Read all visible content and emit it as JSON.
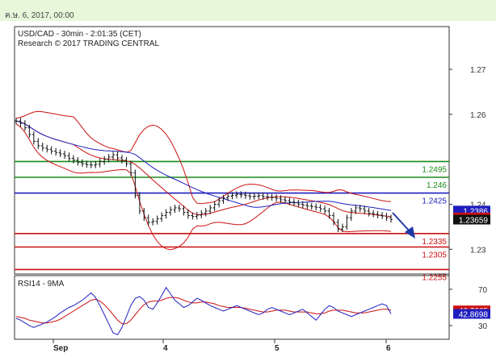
{
  "header": {
    "timestamp": "ค.ษ. 6, 2017, 00:00"
  },
  "chart_data": {
    "type": "line",
    "instrument_label": "USD/CAD - 30min - 2:01:35 (CET)",
    "research_label": "Research © 2017 TRADING CENTRAL",
    "price_ticks": [
      "1.27",
      "1.26",
      "1.24",
      "1.23"
    ],
    "price_tick_values": [
      1.27,
      1.26,
      1.24,
      1.23
    ],
    "price_axis_range": [
      1.2245,
      1.2795
    ],
    "x_tick_labels": [
      "Sep",
      "4",
      "5",
      "6"
    ],
    "levels": [
      {
        "label": "1.2495",
        "value": 1.2495,
        "color": "#1a8c1a"
      },
      {
        "label": "1.246",
        "value": 1.246,
        "color": "#1a8c1a"
      },
      {
        "label": "1.2425",
        "value": 1.2425,
        "color": "#1f1fbf"
      },
      {
        "label": "1.2335",
        "value": 1.2335,
        "color": "#cc1111"
      },
      {
        "label": "1.2305",
        "value": 1.2305,
        "color": "#cc1111"
      },
      {
        "label": "1.2255",
        "value": 1.2255,
        "color": "#cc1111"
      }
    ],
    "price_tags": [
      {
        "label": "1.2386",
        "value": 1.2386,
        "bg": "#1f1fbf",
        "fg": "#ffffff"
      },
      {
        "label": "1.23707",
        "value": 1.23707,
        "bg": "#cc1111",
        "fg": "#ffffff"
      },
      {
        "label": "1.23659",
        "value": 1.23659,
        "bg": "#111111",
        "fg": "#ffffff"
      }
    ],
    "price_series": [
      1.2585,
      1.258,
      1.257,
      1.2555,
      1.254,
      1.253,
      1.2525,
      1.2522,
      1.2518,
      1.2515,
      1.2512,
      1.2508,
      1.2502,
      1.2498,
      1.2493,
      1.249,
      1.2488,
      1.2487,
      1.2489,
      1.2495,
      1.25,
      1.2505,
      1.251,
      1.2503,
      1.2498,
      1.249,
      1.247,
      1.242,
      1.2385,
      1.237,
      1.236,
      1.2362,
      1.2368,
      1.2375,
      1.2382,
      1.2388,
      1.2392,
      1.239,
      1.2382,
      1.2375,
      1.2373,
      1.2376,
      1.238,
      1.2385,
      1.2392,
      1.24,
      1.2408,
      1.2414,
      1.2418,
      1.242,
      1.2422,
      1.2421,
      1.2419,
      1.2417,
      1.2418,
      1.2419,
      1.2417,
      1.2416,
      1.2415,
      1.2413,
      1.241,
      1.2408,
      1.2405,
      1.2403,
      1.24,
      1.2398,
      1.2396,
      1.2395,
      1.2393,
      1.239,
      1.2385,
      1.2375,
      1.236,
      1.2345,
      1.235,
      1.237,
      1.2385,
      1.2392,
      1.239,
      1.2385,
      1.238,
      1.2378,
      1.2376,
      1.2374,
      1.237,
      1.2366
    ],
    "rsi_label": "RSI14 - 9MA",
    "rsi_ticks": [
      "70",
      "30"
    ],
    "rsi_tick_values": [
      70,
      30
    ],
    "rsi_axis_range": [
      15,
      85
    ],
    "rsi_tags": [
      {
        "label": "46.7665",
        "value": 46.7665,
        "bg": "#cc1111",
        "fg": "#ffffff"
      },
      {
        "label": "42.8698",
        "value": 42.8698,
        "bg": "#1f1fbf",
        "fg": "#ffffff"
      }
    ],
    "rsi_series": [
      38,
      36,
      33,
      30,
      28,
      30,
      32,
      34,
      37,
      40,
      44,
      47,
      50,
      52,
      55,
      58,
      62,
      66,
      61,
      52,
      42,
      32,
      22,
      20,
      28,
      40,
      52,
      60,
      62,
      58,
      50,
      48,
      55,
      63,
      72,
      65,
      58,
      54,
      50,
      52,
      56,
      60,
      58,
      55,
      52,
      50,
      48,
      46,
      48,
      50,
      52,
      50,
      48,
      46,
      44,
      42,
      44,
      48,
      50,
      48,
      46,
      44,
      42,
      44,
      46,
      48,
      44,
      40,
      36,
      42,
      48,
      52,
      50,
      46,
      44,
      42,
      40,
      42,
      44,
      46,
      48,
      50,
      52,
      54,
      52,
      42.87
    ],
    "rsi_ma_series": [
      40,
      39,
      38,
      36,
      35,
      34,
      33,
      33,
      34,
      35,
      37,
      40,
      43,
      46,
      49,
      52,
      55,
      58,
      59,
      57,
      53,
      48,
      42,
      36,
      32,
      32,
      36,
      42,
      48,
      53,
      56,
      57,
      57,
      58,
      60,
      61,
      61,
      60,
      58,
      56,
      55,
      55,
      56,
      56,
      55,
      54,
      52,
      51,
      50,
      50,
      50,
      50,
      49,
      48,
      47,
      46,
      45,
      45,
      46,
      47,
      47,
      47,
      46,
      45,
      45,
      45,
      45,
      44,
      43,
      43,
      44,
      46,
      47,
      47,
      47,
      46,
      45,
      44,
      44,
      44,
      45,
      46,
      47,
      48,
      48,
      46.77
    ]
  }
}
